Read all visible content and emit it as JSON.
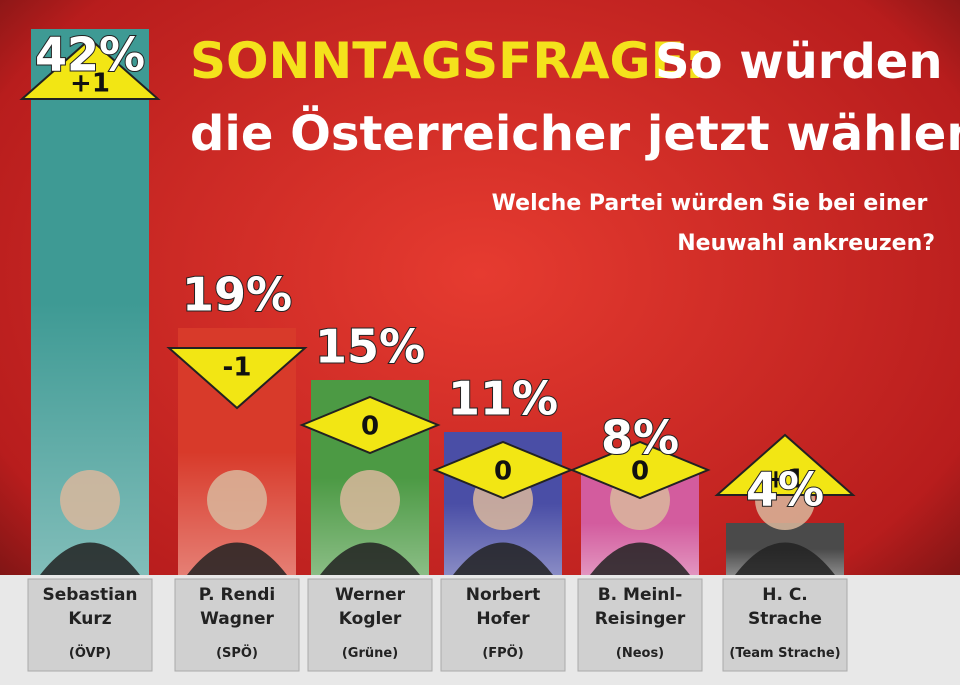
{
  "chart_data": {
    "type": "bar",
    "title_highlight": "SONNTAGSFRAGE:",
    "title": "So würden die Österreicher jetzt wählen",
    "subtitle": "Welche Partei würden Sie bei einer Neuwahl ankreuzen?",
    "categories": [
      [
        "Sebastian",
        "Kurz"
      ],
      [
        "P. Rendi",
        "Wagner"
      ],
      [
        "Werner",
        "Kogler"
      ],
      [
        "Norbert",
        "Hofer"
      ],
      [
        "B. Meinl-",
        "Reisinger"
      ],
      [
        "H. C.",
        "Strache"
      ]
    ],
    "parties": [
      "(ÖVP)",
      "(SPÖ)",
      "(Grüne)",
      "(FPÖ)",
      "(Neos)",
      "(Team Strache)"
    ],
    "series": [
      {
        "name": "Prozent",
        "values": [
          42,
          19,
          15,
          11,
          8,
          4
        ],
        "value_labels": [
          "42%",
          "19%",
          "15%",
          "11%",
          "8%",
          "4%"
        ],
        "colors": [
          "#3e9a94",
          "#d83a2a",
          "#4c9a44",
          "#4a4ea6",
          "#d35c9e",
          "#4a4a4a"
        ]
      },
      {
        "name": "Veränderung",
        "values": [
          1,
          -1,
          0,
          0,
          0,
          1
        ],
        "value_labels": [
          "+1",
          "-1",
          "0",
          "0",
          "0",
          "+1"
        ],
        "color": "#f2e614"
      }
    ]
  }
}
